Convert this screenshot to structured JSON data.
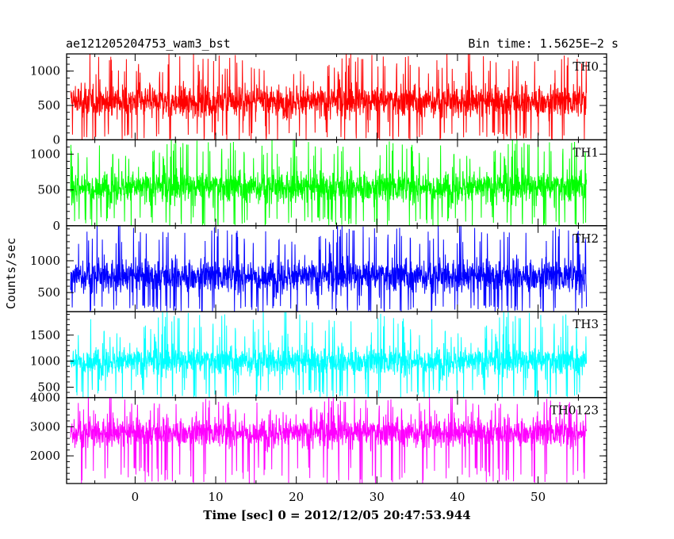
{
  "chart_data": {
    "type": "line",
    "title": "ae121205204753_wam3_bst",
    "subtitle": "Bin time: 1.5625E−2 s",
    "xlabel": "Time [sec] 0 = 2012/12/05 20:47:53.944",
    "ylabel": "Counts/sec",
    "xlim": [
      -8.5,
      58.5
    ],
    "x_data_range": [
      -8,
      56
    ],
    "xticks": [
      0,
      10,
      20,
      30,
      40,
      50
    ],
    "xtick_labels": [
      "0",
      "10",
      "20",
      "30",
      "40",
      "50"
    ],
    "panels": [
      {
        "name": "TH0",
        "color": "#ff0000",
        "ylim": [
          0,
          1250
        ],
        "yticks": [
          0,
          500,
          1000
        ],
        "ytick_labels": [
          "0",
          "500",
          "1000"
        ],
        "mean": 560,
        "band_low": 110,
        "band_high": 950,
        "spike_min": 0,
        "spike_max": 1250
      },
      {
        "name": "TH1",
        "color": "#00ff00",
        "ylim": [
          0,
          1200
        ],
        "yticks": [
          0,
          500,
          1000
        ],
        "ytick_labels": [
          "0",
          "500",
          "1000"
        ],
        "mean": 540,
        "band_low": 120,
        "band_high": 930,
        "spike_min": 0,
        "spike_max": 1200
      },
      {
        "name": "TH2",
        "color": "#0000ff",
        "ylim": [
          200,
          1550
        ],
        "yticks": [
          500,
          1000
        ],
        "ytick_labels": [
          "500",
          "1000"
        ],
        "mean": 760,
        "band_low": 300,
        "band_high": 1250,
        "spike_min": 200,
        "spike_max": 1550
      },
      {
        "name": "TH3",
        "color": "#00ffff",
        "ylim": [
          300,
          1950
        ],
        "yticks": [
          500,
          1000,
          1500
        ],
        "ytick_labels": [
          "500",
          "1000",
          "1500"
        ],
        "mean": 1000,
        "band_low": 450,
        "band_high": 1450,
        "spike_min": 300,
        "spike_max": 1950
      },
      {
        "name": "TH0123",
        "color": "#ff00ff",
        "ylim": [
          1050,
          4000
        ],
        "yticks": [
          2000,
          3000,
          4000
        ],
        "ytick_labels": [
          "2000",
          "3000",
          "4000"
        ],
        "mean": 2800,
        "band_low": 1600,
        "band_high": 3400,
        "spike_min": 1050,
        "spike_max": 4000
      }
    ]
  }
}
